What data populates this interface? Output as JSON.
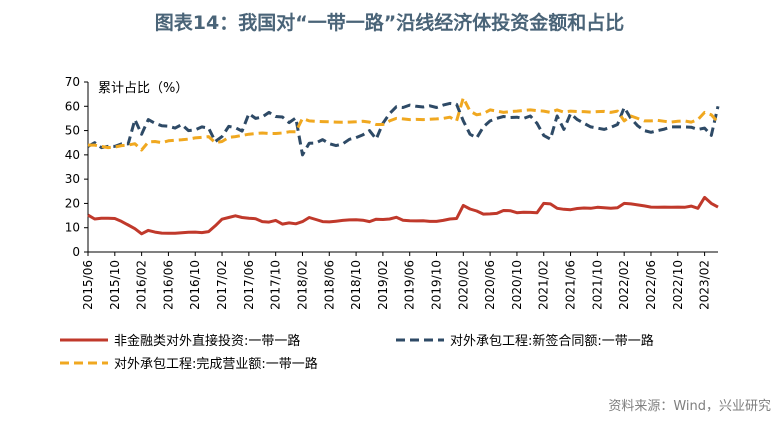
{
  "title": "图表14：我国对“一带一路”沿线经济体投资金额和占比",
  "source": "资料来源：Wind，兴业研究",
  "chart_data": {
    "type": "line",
    "ylabel": "累计占比（%）",
    "ylim": [
      0,
      70
    ],
    "yticks": [
      0,
      10,
      20,
      30,
      40,
      50,
      60,
      70
    ],
    "x_start": "2015-06",
    "x_end": "2023-04",
    "xtick_labels": [
      "2015/06",
      "2015/10",
      "2016/02",
      "2016/06",
      "2016/10",
      "2017/02",
      "2017/06",
      "2017/10",
      "2018/02",
      "2018/06",
      "2018/10",
      "2019/02",
      "2019/06",
      "2019/10",
      "2020/02",
      "2020/06",
      "2020/10",
      "2021/02",
      "2021/06",
      "2021/10",
      "2022/02",
      "2022/06",
      "2022/10",
      "2023/02"
    ],
    "series": [
      {
        "name": "非金融类对外直接投资:一带一路",
        "color": "#c0392b",
        "style": "solid",
        "points": [
          [
            "2015-06",
            15.2
          ],
          [
            "2015-07",
            13.6
          ],
          [
            "2015-08",
            13.9
          ],
          [
            "2015-09",
            13.9
          ],
          [
            "2015-10",
            13.8
          ],
          [
            "2015-11",
            12.6
          ],
          [
            "2015-12",
            11.1
          ],
          [
            "2016-01",
            9.6
          ],
          [
            "2016-02",
            7.5
          ],
          [
            "2016-03",
            8.9
          ],
          [
            "2016-04",
            8.2
          ],
          [
            "2016-05",
            7.8
          ],
          [
            "2016-06",
            7.7
          ],
          [
            "2016-07",
            7.7
          ],
          [
            "2016-08",
            7.9
          ],
          [
            "2016-09",
            8.1
          ],
          [
            "2016-10",
            8.2
          ],
          [
            "2016-11",
            8.0
          ],
          [
            "2016-12",
            8.4
          ],
          [
            "2017-01",
            10.8
          ],
          [
            "2017-02",
            13.5
          ],
          [
            "2017-03",
            14.2
          ],
          [
            "2017-04",
            14.9
          ],
          [
            "2017-05",
            14.2
          ],
          [
            "2017-06",
            13.9
          ],
          [
            "2017-07",
            13.7
          ],
          [
            "2017-08",
            12.5
          ],
          [
            "2017-09",
            12.3
          ],
          [
            "2017-10",
            13.0
          ],
          [
            "2017-11",
            11.5
          ],
          [
            "2017-12",
            12.0
          ],
          [
            "2018-01",
            11.6
          ],
          [
            "2018-02",
            12.5
          ],
          [
            "2018-03",
            14.2
          ],
          [
            "2018-04",
            13.4
          ],
          [
            "2018-05",
            12.5
          ],
          [
            "2018-06",
            12.4
          ],
          [
            "2018-07",
            12.7
          ],
          [
            "2018-08",
            13.0
          ],
          [
            "2018-09",
            13.2
          ],
          [
            "2018-10",
            13.3
          ],
          [
            "2018-11",
            13.1
          ],
          [
            "2018-12",
            12.5
          ],
          [
            "2019-01",
            13.5
          ],
          [
            "2019-02",
            13.4
          ],
          [
            "2019-03",
            13.6
          ],
          [
            "2019-04",
            14.3
          ],
          [
            "2019-05",
            13.1
          ],
          [
            "2019-06",
            12.9
          ],
          [
            "2019-07",
            12.8
          ],
          [
            "2019-08",
            12.9
          ],
          [
            "2019-09",
            12.6
          ],
          [
            "2019-10",
            12.6
          ],
          [
            "2019-11",
            13.0
          ],
          [
            "2019-12",
            13.6
          ],
          [
            "2020-01",
            13.8
          ],
          [
            "2020-02",
            19.2
          ],
          [
            "2020-03",
            17.7
          ],
          [
            "2020-04",
            16.9
          ],
          [
            "2020-05",
            15.6
          ],
          [
            "2020-06",
            15.7
          ],
          [
            "2020-07",
            15.9
          ],
          [
            "2020-08",
            17.1
          ],
          [
            "2020-09",
            17.0
          ],
          [
            "2020-10",
            16.2
          ],
          [
            "2020-11",
            16.4
          ],
          [
            "2020-12",
            16.3
          ],
          [
            "2021-01",
            16.2
          ],
          [
            "2021-02",
            20.0
          ],
          [
            "2021-03",
            19.8
          ],
          [
            "2021-04",
            18.0
          ],
          [
            "2021-05",
            17.6
          ],
          [
            "2021-06",
            17.4
          ],
          [
            "2021-07",
            17.9
          ],
          [
            "2021-08",
            18.1
          ],
          [
            "2021-09",
            18.0
          ],
          [
            "2021-10",
            18.4
          ],
          [
            "2021-11",
            18.2
          ],
          [
            "2021-12",
            18.0
          ],
          [
            "2022-01",
            18.2
          ],
          [
            "2022-02",
            20.0
          ],
          [
            "2022-03",
            19.8
          ],
          [
            "2022-04",
            19.4
          ],
          [
            "2022-05",
            19.0
          ],
          [
            "2022-06",
            18.5
          ],
          [
            "2022-07",
            18.4
          ],
          [
            "2022-08",
            18.5
          ],
          [
            "2022-09",
            18.4
          ],
          [
            "2022-10",
            18.5
          ],
          [
            "2022-11",
            18.4
          ],
          [
            "2022-12",
            18.9
          ],
          [
            "2023-01",
            18.0
          ],
          [
            "2023-02",
            22.5
          ],
          [
            "2023-03",
            20.0
          ],
          [
            "2023-04",
            18.5
          ]
        ]
      },
      {
        "name": "对外承包工程:新签合同额:一带一路",
        "color": "#2e4a66",
        "style": "dashed",
        "points": [
          [
            "2015-06",
            43.5
          ],
          [
            "2015-07",
            45.0
          ],
          [
            "2015-08",
            43.0
          ],
          [
            "2015-09",
            43.5
          ],
          [
            "2015-10",
            43.5
          ],
          [
            "2015-11",
            44.5
          ],
          [
            "2015-12",
            44.5
          ],
          [
            "2016-01",
            54.5
          ],
          [
            "2016-02",
            48.5
          ],
          [
            "2016-03",
            54.5
          ],
          [
            "2016-04",
            53.0
          ],
          [
            "2016-05",
            52.0
          ],
          [
            "2016-06",
            51.8
          ],
          [
            "2016-07",
            51.0
          ],
          [
            "2016-08",
            52.5
          ],
          [
            "2016-09",
            50.0
          ],
          [
            "2016-10",
            50.3
          ],
          [
            "2016-11",
            51.5
          ],
          [
            "2016-12",
            51.0
          ],
          [
            "2017-01",
            45.5
          ],
          [
            "2017-02",
            47.5
          ],
          [
            "2017-03",
            51.7
          ],
          [
            "2017-04",
            51.2
          ],
          [
            "2017-05",
            49.8
          ],
          [
            "2017-06",
            57.0
          ],
          [
            "2017-07",
            55.0
          ],
          [
            "2017-08",
            55.6
          ],
          [
            "2017-09",
            57.5
          ],
          [
            "2017-10",
            55.8
          ],
          [
            "2017-11",
            55.6
          ],
          [
            "2017-12",
            53.3
          ],
          [
            "2018-01",
            55.2
          ],
          [
            "2018-02",
            40.0
          ],
          [
            "2018-03",
            44.8
          ],
          [
            "2018-04",
            44.9
          ],
          [
            "2018-05",
            46.3
          ],
          [
            "2018-06",
            44.6
          ],
          [
            "2018-07",
            43.8
          ],
          [
            "2018-08",
            44.5
          ],
          [
            "2018-09",
            46.4
          ],
          [
            "2018-10",
            47.1
          ],
          [
            "2018-11",
            48.2
          ],
          [
            "2018-12",
            50.0
          ],
          [
            "2019-01",
            46.5
          ],
          [
            "2019-02",
            53.0
          ],
          [
            "2019-03",
            57.0
          ],
          [
            "2019-04",
            59.8
          ],
          [
            "2019-05",
            59.5
          ],
          [
            "2019-06",
            60.5
          ],
          [
            "2019-07",
            60.0
          ],
          [
            "2019-08",
            59.7
          ],
          [
            "2019-09",
            60.2
          ],
          [
            "2019-10",
            59.5
          ],
          [
            "2019-11",
            60.5
          ],
          [
            "2019-12",
            61.2
          ],
          [
            "2020-01",
            60.8
          ],
          [
            "2020-02",
            54.0
          ],
          [
            "2020-03",
            48.5
          ],
          [
            "2020-04",
            47.0
          ],
          [
            "2020-05",
            51.5
          ],
          [
            "2020-06",
            54.0
          ],
          [
            "2020-07",
            55.0
          ],
          [
            "2020-08",
            55.8
          ],
          [
            "2020-09",
            55.4
          ],
          [
            "2020-10",
            55.5
          ],
          [
            "2020-11",
            55.0
          ],
          [
            "2020-12",
            56.0
          ],
          [
            "2021-01",
            53.0
          ],
          [
            "2021-02",
            48.0
          ],
          [
            "2021-03",
            46.5
          ],
          [
            "2021-04",
            56.0
          ],
          [
            "2021-05",
            50.5
          ],
          [
            "2021-06",
            57.0
          ],
          [
            "2021-07",
            54.5
          ],
          [
            "2021-08",
            53.0
          ],
          [
            "2021-09",
            51.5
          ],
          [
            "2021-10",
            51.0
          ],
          [
            "2021-11",
            50.5
          ],
          [
            "2021-12",
            51.3
          ],
          [
            "2022-01",
            52.5
          ],
          [
            "2022-02",
            59.5
          ],
          [
            "2022-03",
            55.0
          ],
          [
            "2022-04",
            52.0
          ],
          [
            "2022-05",
            50.0
          ],
          [
            "2022-06",
            49.3
          ],
          [
            "2022-07",
            50.0
          ],
          [
            "2022-08",
            50.6
          ],
          [
            "2022-09",
            51.5
          ],
          [
            "2022-10",
            51.5
          ],
          [
            "2022-11",
            51.5
          ],
          [
            "2022-12",
            51.4
          ],
          [
            "2023-01",
            50.5
          ],
          [
            "2023-02",
            51.0
          ],
          [
            "2023-03",
            48.0
          ],
          [
            "2023-04",
            60.0
          ]
        ]
      },
      {
        "name": "对外承包工程:完成营业额:一带一路",
        "color": "#f0a820",
        "style": "dashed",
        "points": [
          [
            "2015-06",
            44.0
          ],
          [
            "2015-07",
            44.0
          ],
          [
            "2015-08",
            43.5
          ],
          [
            "2015-09",
            43.0
          ],
          [
            "2015-10",
            43.2
          ],
          [
            "2015-11",
            43.8
          ],
          [
            "2015-12",
            44.0
          ],
          [
            "2016-01",
            44.6
          ],
          [
            "2016-02",
            42.0
          ],
          [
            "2016-03",
            45.3
          ],
          [
            "2016-04",
            45.5
          ],
          [
            "2016-05",
            45.0
          ],
          [
            "2016-06",
            45.8
          ],
          [
            "2016-07",
            46.0
          ],
          [
            "2016-08",
            46.2
          ],
          [
            "2016-09",
            46.5
          ],
          [
            "2016-10",
            47.0
          ],
          [
            "2016-11",
            47.2
          ],
          [
            "2016-12",
            47.5
          ],
          [
            "2017-01",
            45.0
          ],
          [
            "2017-02",
            45.5
          ],
          [
            "2017-03",
            47.2
          ],
          [
            "2017-04",
            47.5
          ],
          [
            "2017-05",
            48.0
          ],
          [
            "2017-06",
            48.5
          ],
          [
            "2017-07",
            48.8
          ],
          [
            "2017-08",
            49.0
          ],
          [
            "2017-09",
            48.8
          ],
          [
            "2017-10",
            48.8
          ],
          [
            "2017-11",
            49.0
          ],
          [
            "2017-12",
            49.5
          ],
          [
            "2018-01",
            49.5
          ],
          [
            "2018-02",
            55.0
          ],
          [
            "2018-03",
            54.0
          ],
          [
            "2018-04",
            53.8
          ],
          [
            "2018-05",
            53.7
          ],
          [
            "2018-06",
            53.6
          ],
          [
            "2018-07",
            53.5
          ],
          [
            "2018-08",
            53.4
          ],
          [
            "2018-09",
            53.5
          ],
          [
            "2018-10",
            53.6
          ],
          [
            "2018-11",
            53.8
          ],
          [
            "2018-12",
            53.5
          ],
          [
            "2019-01",
            52.5
          ],
          [
            "2019-02",
            52.5
          ],
          [
            "2019-03",
            54.0
          ],
          [
            "2019-04",
            55.0
          ],
          [
            "2019-05",
            54.8
          ],
          [
            "2019-06",
            54.5
          ],
          [
            "2019-07",
            54.6
          ],
          [
            "2019-08",
            54.5
          ],
          [
            "2019-09",
            54.7
          ],
          [
            "2019-10",
            54.8
          ],
          [
            "2019-11",
            55.0
          ],
          [
            "2019-12",
            55.5
          ],
          [
            "2020-01",
            54.0
          ],
          [
            "2020-02",
            63.5
          ],
          [
            "2020-03",
            58.0
          ],
          [
            "2020-04",
            56.5
          ],
          [
            "2020-05",
            57.0
          ],
          [
            "2020-06",
            58.5
          ],
          [
            "2020-07",
            58.0
          ],
          [
            "2020-08",
            57.5
          ],
          [
            "2020-09",
            57.8
          ],
          [
            "2020-10",
            58.0
          ],
          [
            "2020-11",
            58.3
          ],
          [
            "2020-12",
            58.5
          ],
          [
            "2021-01",
            58.2
          ],
          [
            "2021-02",
            58.0
          ],
          [
            "2021-03",
            57.5
          ],
          [
            "2021-04",
            58.5
          ],
          [
            "2021-05",
            57.6
          ],
          [
            "2021-06",
            58.0
          ],
          [
            "2021-07",
            57.8
          ],
          [
            "2021-08",
            57.8
          ],
          [
            "2021-09",
            57.6
          ],
          [
            "2021-10",
            57.8
          ],
          [
            "2021-11",
            57.9
          ],
          [
            "2021-12",
            57.5
          ],
          [
            "2022-01",
            58.0
          ],
          [
            "2022-02",
            54.0
          ],
          [
            "2022-03",
            56.0
          ],
          [
            "2022-04",
            55.0
          ],
          [
            "2022-05",
            54.0
          ],
          [
            "2022-06",
            54.0
          ],
          [
            "2022-07",
            54.2
          ],
          [
            "2022-08",
            53.8
          ],
          [
            "2022-09",
            53.5
          ],
          [
            "2022-10",
            53.8
          ],
          [
            "2022-11",
            54.0
          ],
          [
            "2022-12",
            53.5
          ],
          [
            "2023-01",
            54.5
          ],
          [
            "2023-02",
            57.5
          ],
          [
            "2023-03",
            56.5
          ],
          [
            "2023-04",
            53.5
          ]
        ]
      }
    ]
  }
}
